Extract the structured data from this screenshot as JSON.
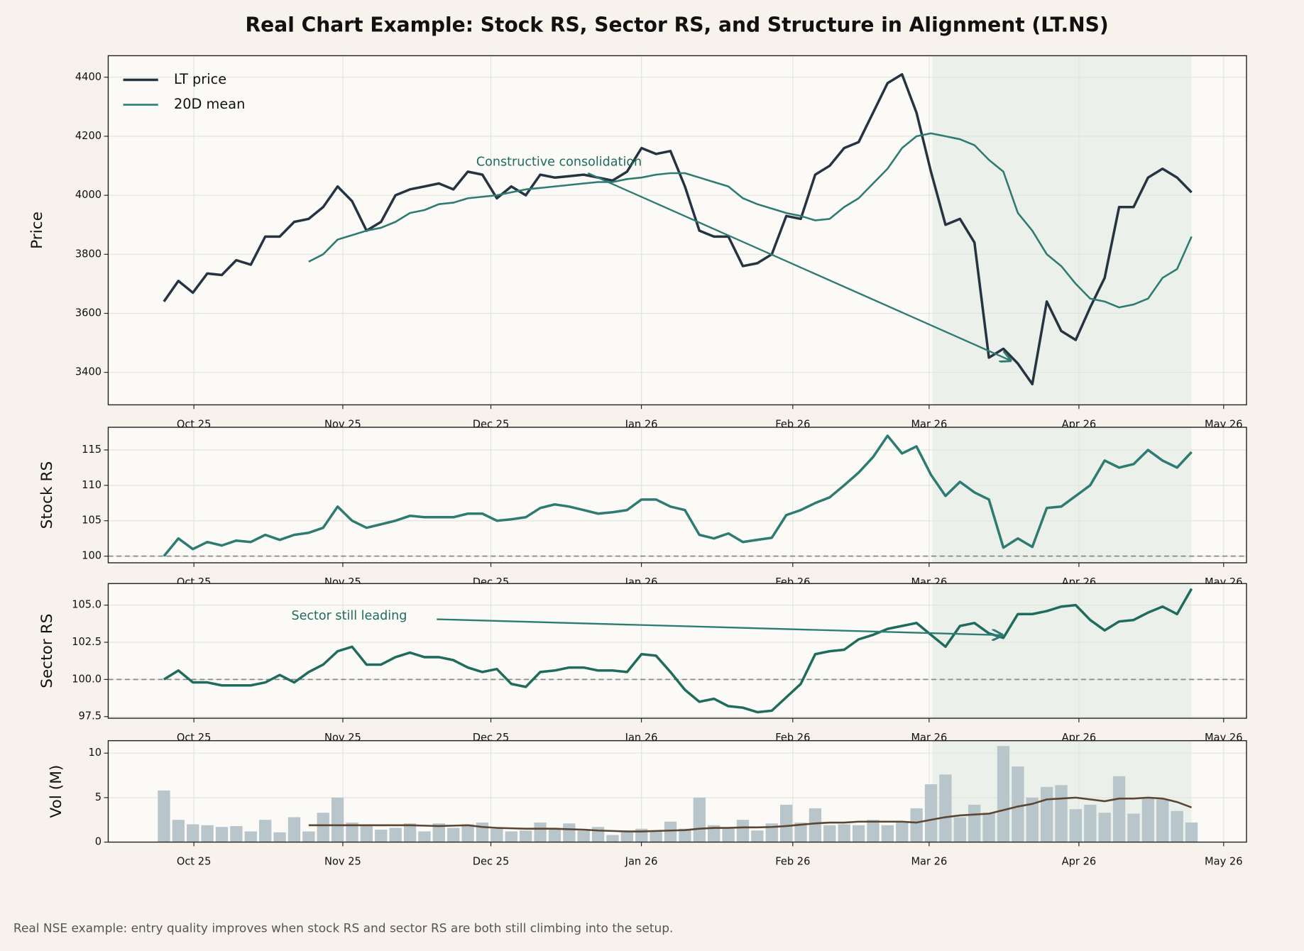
{
  "title": "Real Chart Example: Stock RS, Sector RS, and Structure in Alignment (LT.NS)",
  "footnote": "Real NSE example: entry quality improves when stock RS and sector RS are both still climbing into the setup.",
  "chart_data": [
    {
      "type": "line",
      "ylabel": "Price",
      "grid": true,
      "legend": "upper left",
      "highlight_range": [
        53.1,
        71.0
      ],
      "xlim": [
        -3.85,
        74.8
      ],
      "xticks": [
        {
          "value": 2.07,
          "label": "Oct 25"
        },
        {
          "value": 12.36,
          "label": "Nov 25"
        },
        {
          "value": 22.59,
          "label": "Dec 25"
        },
        {
          "value": 32.99,
          "label": "Jan 26"
        },
        {
          "value": 43.45,
          "label": "Feb 26"
        },
        {
          "value": 52.87,
          "label": "Mar 26"
        },
        {
          "value": 63.22,
          "label": "Apr 26"
        },
        {
          "value": 73.22,
          "label": "May 26"
        }
      ],
      "ylim": [
        3290,
        4473
      ],
      "yticks": [
        3400,
        3600,
        3800,
        4000,
        4200,
        4400
      ],
      "series": [
        {
          "name": "LT price",
          "color": "#263442",
          "width": 3,
          "values": [
            3640,
            3710,
            3670,
            3735,
            3730,
            3780,
            3765,
            3860,
            3860,
            3910,
            3920,
            3960,
            4030,
            3980,
            3880,
            3910,
            4000,
            4020,
            4030,
            4040,
            4020,
            4080,
            4070,
            3990,
            4030,
            4000,
            4070,
            4060,
            4065,
            4070,
            4060,
            4050,
            4080,
            4160,
            4140,
            4150,
            4030,
            3880,
            3860,
            3860,
            3760,
            3770,
            3800,
            3930,
            3920,
            4070,
            4100,
            4160,
            4180,
            4280,
            4380,
            4410,
            4280,
            4080,
            3900,
            3920,
            3840,
            3450,
            3480,
            3430,
            3360,
            3640,
            3540,
            3510,
            3620,
            3720,
            3960,
            3960,
            4060,
            4090,
            4060,
            4010
          ]
        },
        {
          "name": "20D mean",
          "color": "#2e7b72",
          "width": 2.2,
          "values": [
            null,
            null,
            null,
            null,
            null,
            null,
            null,
            null,
            null,
            null,
            3775,
            3800,
            3850,
            3865,
            3880,
            3890,
            3910,
            3940,
            3950,
            3970,
            3975,
            3990,
            3995,
            4000,
            4010,
            4020,
            4025,
            4030,
            4035,
            4040,
            4045,
            4045,
            4055,
            4060,
            4070,
            4075,
            4075,
            4060,
            4045,
            4030,
            3990,
            3970,
            3955,
            3940,
            3930,
            3915,
            3920,
            3960,
            3990,
            4040,
            4090,
            4160,
            4200,
            4210,
            4200,
            4190,
            4170,
            4120,
            4080,
            3940,
            3880,
            3800,
            3760,
            3700,
            3650,
            3640,
            3620,
            3630,
            3650,
            3720,
            3750,
            3860
          ]
        }
      ],
      "annotations": [
        {
          "text": "Constructive consolidation",
          "text_xy": [
            27.3,
            4112
          ],
          "arrow_start": [
            29.3,
            4075
          ],
          "arrow_end": [
            58.5,
            3440
          ]
        }
      ]
    },
    {
      "type": "line",
      "ylabel": "Stock RS",
      "grid": true,
      "highlight_range": [
        53.1,
        71.0
      ],
      "hline": 100,
      "xlim": [
        -3.85,
        74.8
      ],
      "xticks": [
        {
          "value": 2.07,
          "label": "Oct 25"
        },
        {
          "value": 12.36,
          "label": "Nov 25"
        },
        {
          "value": 22.59,
          "label": "Dec 25"
        },
        {
          "value": 32.99,
          "label": "Jan 26"
        },
        {
          "value": 43.45,
          "label": "Feb 26"
        },
        {
          "value": 52.87,
          "label": "Mar 26"
        },
        {
          "value": 63.22,
          "label": "Apr 26"
        },
        {
          "value": 73.22,
          "label": "May 26"
        }
      ],
      "ylim": [
        99.06,
        118.2
      ],
      "yticks": [
        100,
        105,
        110,
        115
      ],
      "series": [
        {
          "color": "#2e7b72",
          "width": 3,
          "values": [
            100,
            102.5,
            101,
            102,
            101.5,
            102.2,
            102,
            103,
            102.3,
            103,
            103.3,
            104,
            107,
            105,
            104,
            104.5,
            105,
            105.7,
            105.5,
            105.5,
            105.5,
            106,
            106,
            105,
            105.2,
            105.5,
            106.8,
            107.3,
            107,
            106.5,
            106,
            106.2,
            106.5,
            108,
            108,
            107,
            106.5,
            103,
            102.5,
            103.2,
            102,
            102.3,
            102.6,
            105.8,
            106.5,
            107.5,
            108.3,
            110,
            111.8,
            114,
            117,
            114.5,
            115.5,
            111.5,
            108.5,
            110.5,
            109,
            108,
            101.2,
            102.5,
            101.3,
            106.8,
            107,
            108.5,
            110,
            113.5,
            112.5,
            113,
            115,
            113.5,
            112.5,
            114.7
          ]
        }
      ]
    },
    {
      "type": "line",
      "ylabel": "Sector RS",
      "grid": true,
      "highlight_range": [
        53.1,
        71.0
      ],
      "hline": 100,
      "xlim": [
        -3.85,
        74.8
      ],
      "xticks": [
        {
          "value": 2.07,
          "label": "Oct 25"
        },
        {
          "value": 12.36,
          "label": "Nov 25"
        },
        {
          "value": 22.59,
          "label": "Dec 25"
        },
        {
          "value": 32.99,
          "label": "Jan 26"
        },
        {
          "value": 43.45,
          "label": "Feb 26"
        },
        {
          "value": 52.87,
          "label": "Mar 26"
        },
        {
          "value": 63.22,
          "label": "Apr 26"
        },
        {
          "value": 73.22,
          "label": "May 26"
        }
      ],
      "ylim": [
        97.39,
        106.45
      ],
      "yticks": [
        {
          "value": 97.5,
          "label": "97.5"
        },
        {
          "value": 100,
          "label": "100.0"
        },
        {
          "value": 102.5,
          "label": "102.5"
        },
        {
          "value": 105,
          "label": "105.0"
        }
      ],
      "series": [
        {
          "color": "#1f6b5c",
          "width": 3,
          "values": [
            100,
            100.6,
            99.8,
            99.8,
            99.6,
            99.6,
            99.6,
            99.8,
            100.3,
            99.8,
            100.5,
            101,
            101.9,
            102.2,
            101,
            101,
            101.5,
            101.8,
            101.5,
            101.5,
            101.3,
            100.8,
            100.5,
            100.7,
            99.7,
            99.5,
            100.5,
            100.6,
            100.8,
            100.8,
            100.6,
            100.6,
            100.5,
            101.7,
            101.6,
            100.5,
            99.3,
            98.5,
            98.7,
            98.2,
            98.1,
            97.8,
            97.9,
            98.8,
            99.7,
            101.7,
            101.9,
            102,
            102.7,
            103,
            103.4,
            103.6,
            103.8,
            103,
            102.2,
            103.6,
            103.8,
            103.1,
            102.8,
            104.4,
            104.4,
            104.6,
            104.9,
            105,
            104,
            103.3,
            103.9,
            104,
            104.5,
            104.9,
            104.4,
            106.1
          ]
        }
      ],
      "annotations": [
        {
          "text": "Sector still leading",
          "text_xy": [
            12.8,
            104.27
          ],
          "arrow_start": [
            18.85,
            104.05
          ],
          "arrow_end": [
            57.93,
            102.98
          ]
        }
      ]
    },
    {
      "type": "bar",
      "ylabel": "Vol (M)",
      "grid": true,
      "highlight_range": [
        53.1,
        71.0
      ],
      "xlim": [
        -3.85,
        74.8
      ],
      "xticks": [
        {
          "value": 2.07,
          "label": "Oct 25"
        },
        {
          "value": 12.36,
          "label": "Nov 25"
        },
        {
          "value": 22.59,
          "label": "Dec 25"
        },
        {
          "value": 32.99,
          "label": "Jan 26"
        },
        {
          "value": 43.45,
          "label": "Feb 26"
        },
        {
          "value": 52.87,
          "label": "Mar 26"
        },
        {
          "value": 63.22,
          "label": "Apr 26"
        },
        {
          "value": 73.22,
          "label": "May 26"
        }
      ],
      "ylim": [
        0,
        11.4
      ],
      "yticks": [
        0,
        5,
        10
      ],
      "series": [
        {
          "type": "bar",
          "color": "#b8c5cb",
          "values": [
            5.8,
            2.5,
            2,
            1.9,
            1.7,
            1.8,
            1.2,
            2.5,
            1.1,
            2.8,
            1.2,
            3.3,
            5,
            2.2,
            1.8,
            1.4,
            1.6,
            2.1,
            1.2,
            2.1,
            1.6,
            2,
            2.2,
            1.5,
            1.2,
            1.3,
            2.2,
            1.4,
            2.1,
            1.3,
            1.7,
            0.8,
            1.1,
            1.5,
            1.3,
            2.3,
            1.5,
            5,
            1.9,
            1.5,
            2.5,
            1.3,
            2.1,
            4.2,
            2.2,
            3.8,
            1.9,
            2,
            1.9,
            2.5,
            1.9,
            2.2,
            3.8,
            6.5,
            7.6,
            2.8,
            4.2,
            3.3,
            10.8,
            8.5,
            5,
            6.2,
            6.4,
            3.7,
            4.2,
            3.3,
            7.4,
            3.2,
            5,
            4.8,
            3.5,
            2.2
          ]
        },
        {
          "type": "line",
          "color": "#5a4632",
          "width": 2.2,
          "values": [
            null,
            null,
            null,
            null,
            null,
            null,
            null,
            null,
            null,
            null,
            1.9,
            1.9,
            1.9,
            1.9,
            1.9,
            1.9,
            1.9,
            1.9,
            1.85,
            1.8,
            1.85,
            1.9,
            1.7,
            1.6,
            1.55,
            1.5,
            1.5,
            1.5,
            1.45,
            1.4,
            1.3,
            1.25,
            1.2,
            1.2,
            1.25,
            1.3,
            1.35,
            1.5,
            1.6,
            1.6,
            1.65,
            1.65,
            1.7,
            1.8,
            1.95,
            2.1,
            2.2,
            2.2,
            2.3,
            2.3,
            2.3,
            2.3,
            2.2,
            2.5,
            2.8,
            3.0,
            3.1,
            3.2,
            3.6,
            4.0,
            4.3,
            4.8,
            4.9,
            5.0,
            4.8,
            4.6,
            4.9,
            4.9,
            5.0,
            4.9,
            4.5,
            3.9
          ]
        }
      ]
    }
  ]
}
